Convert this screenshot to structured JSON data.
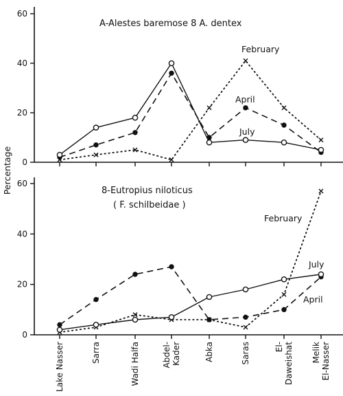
{
  "chart_data": [
    {
      "type": "line",
      "title": "A-Alestes baremose 8 A. dentex",
      "ylabel": "Percentage",
      "ylim": [
        0,
        60
      ],
      "yticks": [
        0,
        20,
        40,
        60
      ],
      "categories": [
        "Lake Nasser",
        "Sarra",
        "Wadi Halfa",
        "Abdel-Kader",
        "Abka",
        "Saras",
        "El-Daweishat",
        "Melik El-Nasser"
      ],
      "series": [
        {
          "name": "February",
          "values": [
            1,
            3,
            5,
            1,
            22,
            41,
            22,
            9
          ]
        },
        {
          "name": "April",
          "values": [
            2,
            7,
            12,
            36,
            10,
            22,
            15,
            4
          ]
        },
        {
          "name": "July",
          "values": [
            3,
            14,
            18,
            40,
            8,
            9,
            8,
            5
          ]
        }
      ]
    },
    {
      "type": "line",
      "title": "8-Eutropius niloticus",
      "subtitle": "( F. schilbeidae )",
      "ylabel": "",
      "ylim": [
        0,
        60
      ],
      "yticks": [
        0,
        20,
        40,
        60
      ],
      "categories": [
        "Lake Nasser",
        "Sarra",
        "Wadi Halfa",
        "Abdel-Kader",
        "Abka",
        "Saras",
        "El-Daweishat",
        "Melik El-Nasser"
      ],
      "series": [
        {
          "name": "February",
          "values": [
            1,
            3,
            8,
            6,
            6,
            3,
            16,
            57
          ]
        },
        {
          "name": "April",
          "values": [
            4,
            14,
            24,
            27,
            6,
            7,
            10,
            23
          ]
        },
        {
          "name": "July",
          "values": [
            2,
            4,
            6,
            7,
            15,
            18,
            22,
            24
          ]
        }
      ]
    }
  ],
  "site_labels": [
    [
      "Lake Nasser"
    ],
    [
      "Sarra"
    ],
    [
      "Wadi Halfa"
    ],
    [
      "Abdel-",
      "Kader"
    ],
    [
      "Abka"
    ],
    [
      "Saras"
    ],
    [
      "El-",
      "Daweishat"
    ],
    [
      "Melik",
      "El-Nasser"
    ]
  ],
  "shared_ylabel": "Percentage"
}
